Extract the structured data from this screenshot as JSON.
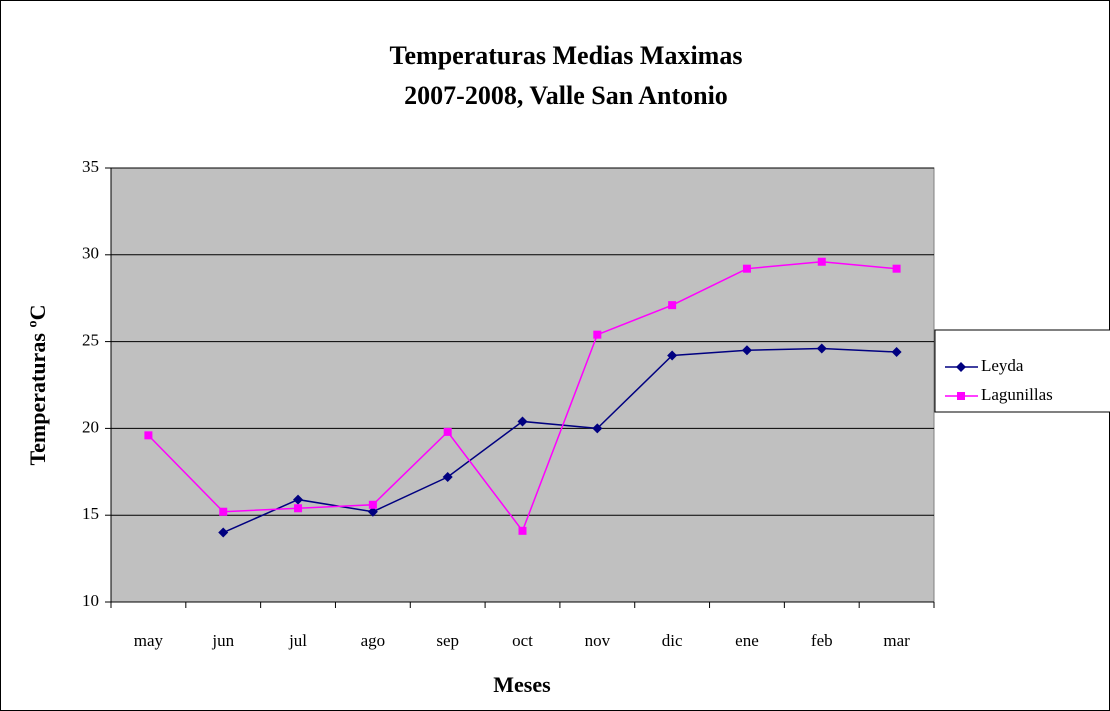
{
  "chart_data": {
    "type": "line",
    "title": "Temperaturas Medias Maximas",
    "subtitle": "2007-2008, Valle San Antonio",
    "x_label": "Meses",
    "y_label": "Temperaturas ºC",
    "categories": [
      "may",
      "jun",
      "jul",
      "ago",
      "sep",
      "oct",
      "nov",
      "dic",
      "ene",
      "feb",
      "mar"
    ],
    "series": [
      {
        "name": "Leyda",
        "color": "#000080",
        "marker": "diamond",
        "values": [
          null,
          14.0,
          15.9,
          15.2,
          17.2,
          20.4,
          20.0,
          24.2,
          24.5,
          24.6,
          24.4
        ]
      },
      {
        "name": "Lagunillas",
        "color": "#ff00ff",
        "marker": "square",
        "values": [
          19.6,
          15.2,
          15.4,
          15.6,
          19.8,
          14.1,
          25.4,
          27.1,
          29.2,
          29.6,
          29.2
        ]
      }
    ],
    "ylim": [
      10,
      35
    ],
    "yticks": [
      10,
      15,
      20,
      25,
      30,
      35
    ],
    "grid": true,
    "legend": "right"
  }
}
